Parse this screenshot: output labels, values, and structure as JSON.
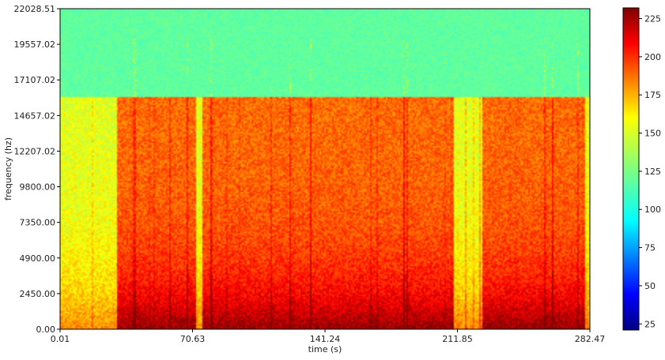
{
  "chart_data": {
    "type": "heatmap",
    "title": "",
    "xlabel": "time (s)",
    "ylabel": "frequency (hz)",
    "xlim": [
      0.01,
      282.47
    ],
    "ylim": [
      0.0,
      22028.51
    ],
    "x_ticks": [
      "0.01",
      "70.63",
      "141.24",
      "211.85",
      "282.47"
    ],
    "y_ticks": [
      "0.00",
      "2450.00",
      "4900.00",
      "7350.00",
      "9800.00",
      "12207.02",
      "14657.02",
      "17107.02",
      "19557.02",
      "22028.51"
    ],
    "colormap": "jet",
    "colorbar": {
      "min": 21,
      "max": 232,
      "ticks": [
        "25",
        "50",
        "75",
        "100",
        "125",
        "150",
        "175",
        "200",
        "225"
      ]
    },
    "grid": false,
    "approx_content": {
      "background_above_cutoff_value": 120,
      "cutoff_frequency_hz": 16000,
      "quiet_segments_s": [
        [
          0.01,
          30
        ],
        [
          72,
          76
        ],
        [
          210,
          225
        ],
        [
          280,
          282.47
        ]
      ],
      "loud_segments_s": [
        [
          30,
          72
        ],
        [
          76,
          210
        ],
        [
          225,
          280
        ]
      ]
    }
  }
}
